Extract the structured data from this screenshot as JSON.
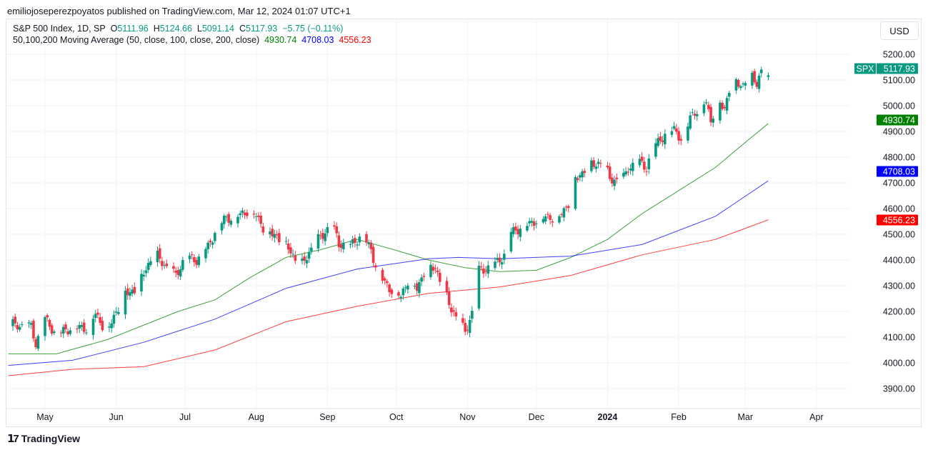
{
  "publisher_line": "emiliojoseperezpoyatos published on TradingView.com, Mar 12, 2024 01:07 UTC+1",
  "legend": {
    "symbol": "S&P 500 Index, 1D, SP",
    "o_label": "O",
    "o": "5111.96",
    "h_label": "H",
    "h": "5124.66",
    "l_label": "L",
    "l": "5091.14",
    "c_label": "C",
    "c": "5117.93",
    "change": "−5.75 (−0.11%)",
    "ma_title": "50,100,200 Moving Average (50, close, 100, close, 200, close)",
    "ma50": "4930.74",
    "ma100": "4708.03",
    "ma200": "4556.23"
  },
  "currency": "USD",
  "footer": "TradingView",
  "chart_data": {
    "type": "candlestick",
    "symbol": "SPX",
    "last_price": 5117.93,
    "ylim": [
      3850,
      5250
    ],
    "yticks": [
      3900,
      4000,
      4100,
      4200,
      4300,
      4400,
      4500,
      4600,
      4700,
      4800,
      4900,
      5000,
      5100,
      5200
    ],
    "ytick_labels": [
      "3900.00",
      "4000.00",
      "4100.00",
      "4200.00",
      "4300.00",
      "4400.00",
      "4500.00",
      "4600.00",
      "4700.00",
      "4800.00",
      "4900.00",
      "5000.00",
      "5100.00",
      "5200.00"
    ],
    "xlim_days": [
      -18,
      370
    ],
    "xticks": [
      {
        "day": 0,
        "label": "May"
      },
      {
        "day": 31,
        "label": "Jun"
      },
      {
        "day": 61,
        "label": "Jul"
      },
      {
        "day": 92,
        "label": "Aug"
      },
      {
        "day": 123,
        "label": "Sep"
      },
      {
        "day": 153,
        "label": "Oct"
      },
      {
        "day": 184,
        "label": "Nov"
      },
      {
        "day": 214,
        "label": "Dec"
      },
      {
        "day": 245,
        "label": "2024",
        "bold": true
      },
      {
        "day": 276,
        "label": "Feb"
      },
      {
        "day": 305,
        "label": "Mar"
      },
      {
        "day": 336,
        "label": "Apr"
      }
    ],
    "close_path": [
      [
        -16,
        4150
      ],
      [
        -6,
        4140
      ],
      [
        -4,
        4075
      ],
      [
        0,
        4170
      ],
      [
        5,
        4110
      ],
      [
        12,
        4140
      ],
      [
        18,
        4135
      ],
      [
        22,
        4190
      ],
      [
        27,
        4120
      ],
      [
        30,
        4180
      ],
      [
        35,
        4270
      ],
      [
        40,
        4285
      ],
      [
        44,
        4370
      ],
      [
        48,
        4425
      ],
      [
        54,
        4360
      ],
      [
        57,
        4340
      ],
      [
        61,
        4410
      ],
      [
        66,
        4400
      ],
      [
        71,
        4450
      ],
      [
        74,
        4510
      ],
      [
        78,
        4560
      ],
      [
        83,
        4570
      ],
      [
        88,
        4590
      ],
      [
        92,
        4575
      ],
      [
        96,
        4510
      ],
      [
        100,
        4500
      ],
      [
        106,
        4450
      ],
      [
        111,
        4370
      ],
      [
        117,
        4460
      ],
      [
        122,
        4510
      ],
      [
        125,
        4540
      ],
      [
        128,
        4465
      ],
      [
        133,
        4455
      ],
      [
        138,
        4500
      ],
      [
        142,
        4440
      ],
      [
        145,
        4350
      ],
      [
        150,
        4290
      ],
      [
        155,
        4260
      ],
      [
        158,
        4320
      ],
      [
        162,
        4290
      ],
      [
        166,
        4370
      ],
      [
        170,
        4370
      ],
      [
        173,
        4300
      ],
      [
        177,
        4210
      ],
      [
        183,
        4120
      ],
      [
        187,
        4220
      ],
      [
        189,
        4360
      ],
      [
        195,
        4375
      ],
      [
        200,
        4420
      ],
      [
        201,
        4500
      ],
      [
        208,
        4530
      ],
      [
        214,
        4555
      ],
      [
        218,
        4570
      ],
      [
        223,
        4560
      ],
      [
        228,
        4620
      ],
      [
        229,
        4700
      ],
      [
        234,
        4740
      ],
      [
        237,
        4770
      ],
      [
        243,
        4780
      ],
      [
        246,
        4720
      ],
      [
        251,
        4700
      ],
      [
        254,
        4760
      ],
      [
        259,
        4780
      ],
      [
        262,
        4760
      ],
      [
        265,
        4840
      ],
      [
        270,
        4890
      ],
      [
        274,
        4910
      ],
      [
        278,
        4860
      ],
      [
        281,
        4960
      ],
      [
        285,
        4990
      ],
      [
        288,
        5020
      ],
      [
        290,
        4940
      ],
      [
        293,
        5020
      ],
      [
        296,
        4990
      ],
      [
        299,
        5100
      ],
      [
        304,
        5080
      ],
      [
        307,
        5120
      ],
      [
        310,
        5090
      ],
      [
        313,
        5160
      ],
      [
        315,
        5117.93
      ]
    ],
    "series": [
      {
        "name": "MA 50",
        "color": "#008000",
        "last": 4930.74,
        "points": [
          [
            -16,
            4035
          ],
          [
            5,
            4035
          ],
          [
            27,
            4090
          ],
          [
            58,
            4200
          ],
          [
            74,
            4245
          ],
          [
            89,
            4330
          ],
          [
            105,
            4410
          ],
          [
            120,
            4440
          ],
          [
            136,
            4480
          ],
          [
            152,
            4440
          ],
          [
            167,
            4400
          ],
          [
            183,
            4370
          ],
          [
            198,
            4355
          ],
          [
            214,
            4360
          ],
          [
            229,
            4410
          ],
          [
            245,
            4480
          ],
          [
            260,
            4580
          ],
          [
            276,
            4670
          ],
          [
            292,
            4760
          ],
          [
            304,
            4850
          ],
          [
            315,
            4930.74
          ]
        ]
      },
      {
        "name": "MA 100",
        "color": "#0000ff",
        "last": 4708.03,
        "points": [
          [
            -16,
            3990
          ],
          [
            12,
            4010
          ],
          [
            43,
            4080
          ],
          [
            74,
            4170
          ],
          [
            105,
            4290
          ],
          [
            136,
            4365
          ],
          [
            167,
            4405
          ],
          [
            180,
            4410
          ],
          [
            198,
            4405
          ],
          [
            229,
            4415
          ],
          [
            260,
            4460
          ],
          [
            292,
            4570
          ],
          [
            315,
            4708.03
          ]
        ]
      },
      {
        "name": "MA 200",
        "color": "#ff0000",
        "last": 4556.23,
        "points": [
          [
            -16,
            3950
          ],
          [
            12,
            3975
          ],
          [
            43,
            3985
          ],
          [
            74,
            4050
          ],
          [
            105,
            4160
          ],
          [
            136,
            4220
          ],
          [
            167,
            4270
          ],
          [
            198,
            4295
          ],
          [
            229,
            4340
          ],
          [
            260,
            4420
          ],
          [
            292,
            4480
          ],
          [
            315,
            4556.23
          ]
        ]
      }
    ],
    "colors": {
      "up": "#089981",
      "down": "#f23645"
    }
  }
}
